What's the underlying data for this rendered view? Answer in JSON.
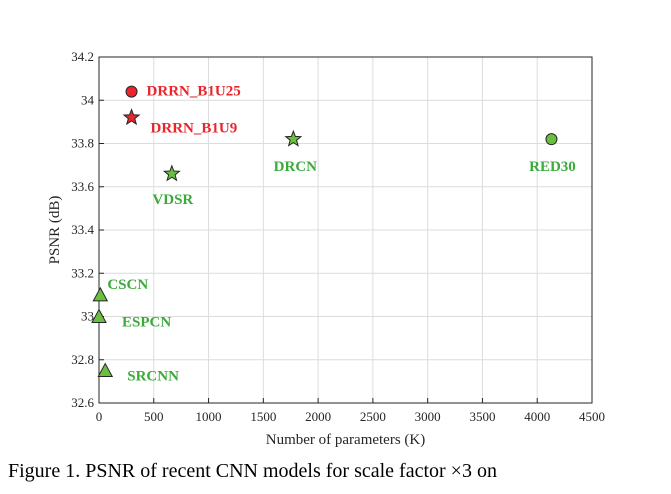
{
  "caption": "Figure 1. PSNR of recent CNN models for scale factor ×3 on",
  "chart_data": {
    "type": "scatter",
    "xlabel": "Number of parameters (K)",
    "ylabel": "PSNR (dB)",
    "xlim": [
      0,
      4500
    ],
    "ylim": [
      32.6,
      34.2
    ],
    "xticks": [
      "0",
      "500",
      "1000",
      "1500",
      "2000",
      "2500",
      "3000",
      "3500",
      "4000",
      "4500"
    ],
    "yticks": [
      "32.6",
      "32.8",
      "33",
      "33.2",
      "33.4",
      "33.6",
      "33.8",
      "34",
      "34.2"
    ],
    "grid": true,
    "points": [
      {
        "label": "DRRN_B1U25",
        "x": 297,
        "y": 34.04,
        "marker": "circle",
        "color": "#e8262b"
      },
      {
        "label": "DRRN_B1U9",
        "x": 297,
        "y": 33.92,
        "marker": "star",
        "color": "#e8262b"
      },
      {
        "label": "DRCN",
        "x": 1774,
        "y": 33.82,
        "marker": "star",
        "color": "#6bbf3f"
      },
      {
        "label": "RED30",
        "x": 4130,
        "y": 33.82,
        "marker": "circle",
        "color": "#6bbf3f"
      },
      {
        "label": "VDSR",
        "x": 665,
        "y": 33.66,
        "marker": "star",
        "color": "#6bbf3f"
      },
      {
        "label": "CSCN",
        "x": 12,
        "y": 33.1,
        "marker": "triangle",
        "color": "#6bbf3f"
      },
      {
        "label": "ESPCN",
        "x": 0,
        "y": 33.0,
        "marker": "triangle",
        "color": "#6bbf3f"
      },
      {
        "label": "SRCNN",
        "x": 57,
        "y": 32.75,
        "marker": "triangle",
        "color": "#6bbf3f"
      }
    ],
    "label_colors": {
      "red": "#e8262b",
      "green": "#3aab3a"
    }
  }
}
